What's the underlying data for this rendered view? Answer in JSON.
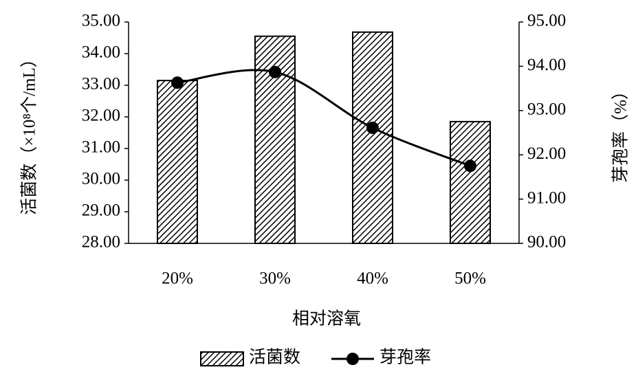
{
  "chart_data": {
    "type": "bar",
    "xlabel": "相对溶氧",
    "ylabel": "活菌数（×10⁸个/mL）",
    "y2label": "芽孢率（%）",
    "categories": [
      "20%",
      "30%",
      "40%",
      "50%"
    ],
    "series": [
      {
        "name": "活菌数",
        "type": "bar",
        "color": "#000000",
        "values": [
          33.15,
          34.55,
          34.68,
          31.85
        ]
      },
      {
        "name": "芽孢率",
        "type": "line",
        "axis": "y2",
        "color": "#000000",
        "values": [
          93.63,
          93.87,
          92.61,
          91.75
        ]
      }
    ],
    "ylim": [
      28,
      35
    ],
    "yticks": [
      {
        "value": 28,
        "label": "28.00"
      },
      {
        "value": 29,
        "label": "29.00"
      },
      {
        "value": 30,
        "label": "30.00"
      },
      {
        "value": 31,
        "label": "31.00"
      },
      {
        "value": 32,
        "label": "32.00"
      },
      {
        "value": 33,
        "label": "33.00"
      },
      {
        "value": 34,
        "label": "34.00"
      },
      {
        "value": 35,
        "label": "35.00"
      }
    ],
    "y2lim": [
      90,
      95
    ],
    "y2ticks": [
      {
        "value": 90,
        "label": "90.00"
      },
      {
        "value": 91,
        "label": "91.00"
      },
      {
        "value": 92,
        "label": "92.00"
      },
      {
        "value": 93,
        "label": "93.00"
      },
      {
        "value": 94,
        "label": "94.00"
      },
      {
        "value": 95,
        "label": "95.00"
      }
    ],
    "legend": "bottom"
  }
}
